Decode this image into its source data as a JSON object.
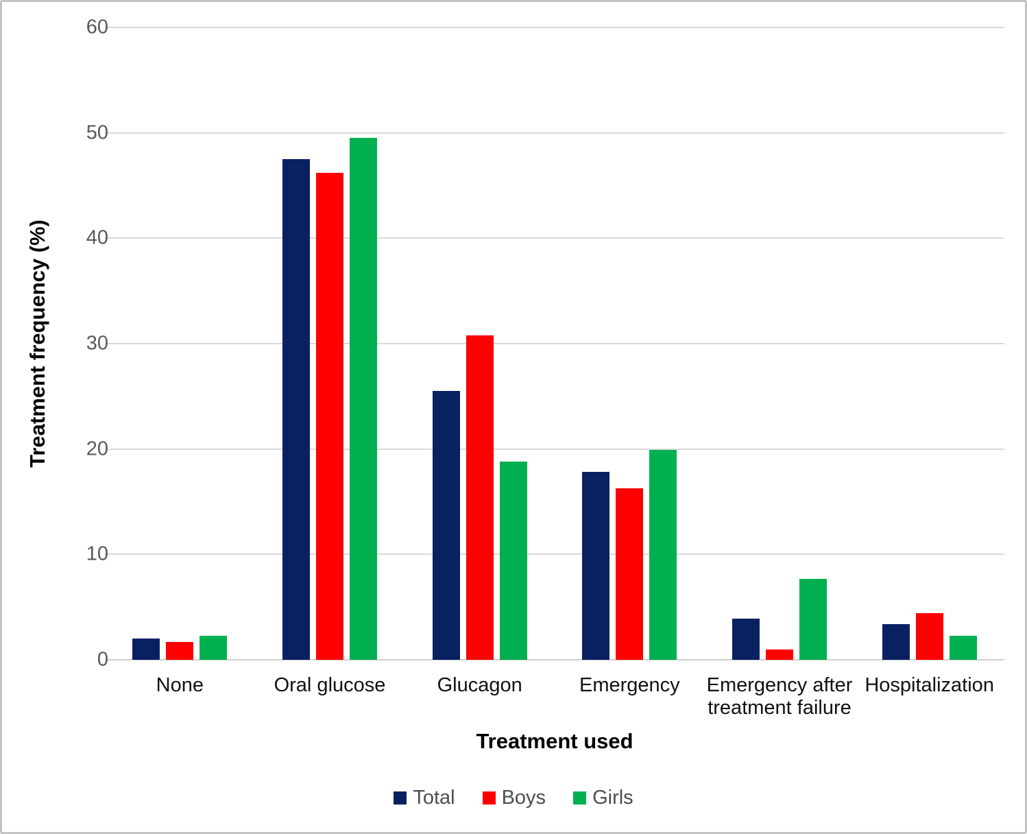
{
  "chart_data": {
    "type": "bar",
    "title": "",
    "categories": [
      "None",
      "Oral glucose",
      "Glucagon",
      "Emergency",
      "Emergency after treatment failure",
      "Hospitalization"
    ],
    "series": [
      {
        "name": "Total",
        "color": "#0a2161",
        "values": [
          2.0,
          47.5,
          25.5,
          17.8,
          3.9,
          3.4
        ]
      },
      {
        "name": "Boys",
        "color": "#fe0000",
        "values": [
          1.7,
          46.2,
          30.8,
          16.3,
          1.0,
          4.4
        ]
      },
      {
        "name": "Girls",
        "color": "#00b050",
        "values": [
          2.3,
          49.5,
          18.8,
          19.9,
          7.7,
          2.3
        ]
      }
    ],
    "xlabel": "Treatment used",
    "ylabel": "Treatment frequency (%)",
    "ylim": [
      0,
      60
    ],
    "yticks": [
      0,
      10,
      20,
      30,
      40,
      50,
      60
    ],
    "grid": true,
    "legend_position": "bottom",
    "colors": {
      "gridline": "#d9d9d9",
      "axis_line": "#cfcece",
      "tick_label": "#595959",
      "legend_label": "#4d4d4d"
    }
  }
}
